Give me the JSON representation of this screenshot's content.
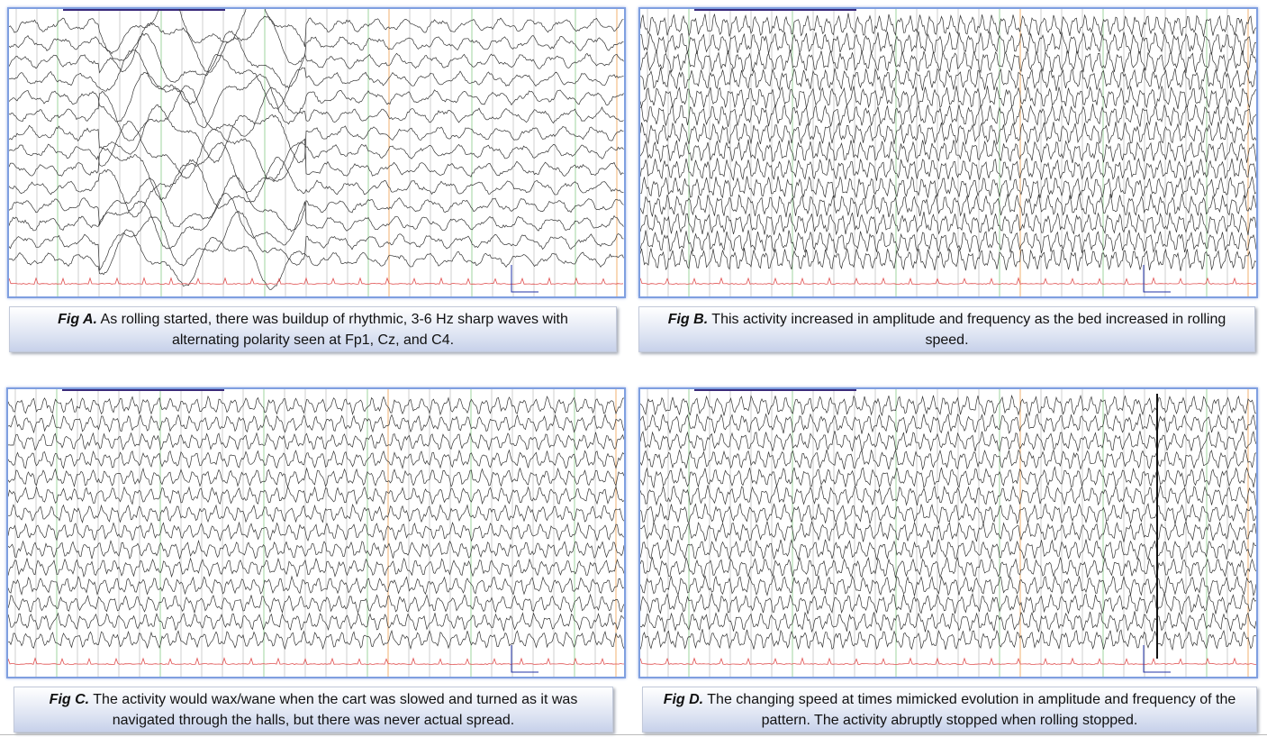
{
  "panels": [
    {
      "label": "Fig A.",
      "caption": "As rolling started, there was buildup of rhythmic, 3-6 Hz sharp waves with alternating polarity seen at Fp1, Cz, and C4."
    },
    {
      "label": "Fig B.",
      "caption": "This activity increased in amplitude and frequency as the bed increased in rolling speed."
    },
    {
      "label": "Fig C.",
      "caption": "The activity would wax/wane when the cart was slowed and turned as it was navigated through the halls, but there was never actual spread."
    },
    {
      "label": "Fig D.",
      "caption": "The changing speed at times mimicked evolution in amplitude and frequency of the pattern. The activity abruptly stopped when rolling stopped."
    }
  ]
}
